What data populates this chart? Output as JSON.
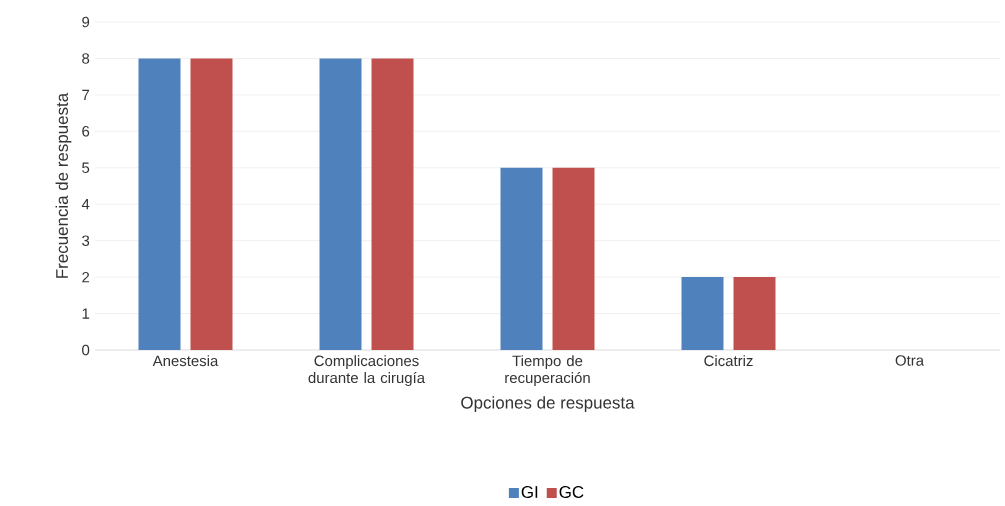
{
  "chart_data": {
    "type": "bar",
    "xlabel": "Opciones de respuesta",
    "ylabel": "Frecuencia de respuesta",
    "categories": [
      "Anestesia",
      "Complicaciones durante la cirugía",
      "Tiempo de recuperación",
      "Cicatriz",
      "Otra"
    ],
    "series": [
      {
        "name": "GI",
        "color": "#4f81bd",
        "values": [
          8,
          8,
          5,
          2,
          0
        ]
      },
      {
        "name": "GC",
        "color": "#c0504d",
        "values": [
          8,
          8,
          5,
          2,
          0
        ]
      }
    ],
    "ylim": [
      0,
      9
    ],
    "yticks": [
      0,
      1,
      2,
      3,
      4,
      5,
      6,
      7,
      8,
      9
    ],
    "grid": "y",
    "legend": "bottom"
  }
}
